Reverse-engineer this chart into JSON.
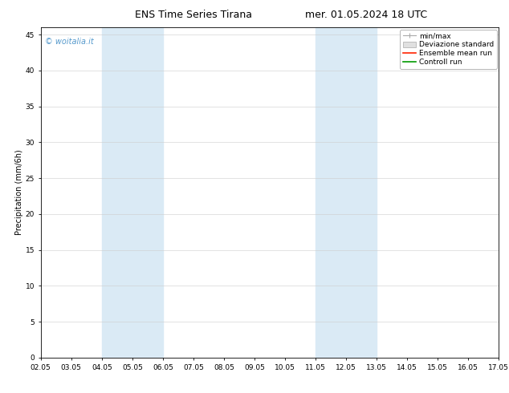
{
  "title_left": "ENS Time Series Tirana",
  "title_right": "mer. 01.05.2024 18 UTC",
  "ylabel": "Precipitation (mm/6h)",
  "ylim": [
    0,
    46
  ],
  "yticks": [
    0,
    5,
    10,
    15,
    20,
    25,
    30,
    35,
    40,
    45
  ],
  "xtick_labels": [
    "02.05",
    "03.05",
    "04.05",
    "05.05",
    "06.05",
    "07.05",
    "08.05",
    "09.05",
    "10.05",
    "11.05",
    "12.05",
    "13.05",
    "14.05",
    "15.05",
    "16.05",
    "17.05"
  ],
  "xtick_positions": [
    0,
    1,
    2,
    3,
    4,
    5,
    6,
    7,
    8,
    9,
    10,
    11,
    12,
    13,
    14,
    15
  ],
  "shaded_regions": [
    {
      "xmin": 2,
      "xmax": 4,
      "color": "#daeaf5"
    },
    {
      "xmin": 9,
      "xmax": 11,
      "color": "#daeaf5"
    }
  ],
  "watermark": "© woitalia.it",
  "watermark_color": "#5599cc",
  "legend_labels": [
    "min/max",
    "Deviazione standard",
    "Ensemble mean run",
    "Controll run"
  ],
  "legend_line_colors": [
    "#aaaaaa",
    "#cccccc",
    "#ff2200",
    "#009900"
  ],
  "background_color": "#ffffff",
  "plot_bg_color": "#ffffff",
  "title_fontsize": 9,
  "ylabel_fontsize": 7,
  "tick_fontsize": 6.5,
  "legend_fontsize": 6.5,
  "watermark_fontsize": 7
}
